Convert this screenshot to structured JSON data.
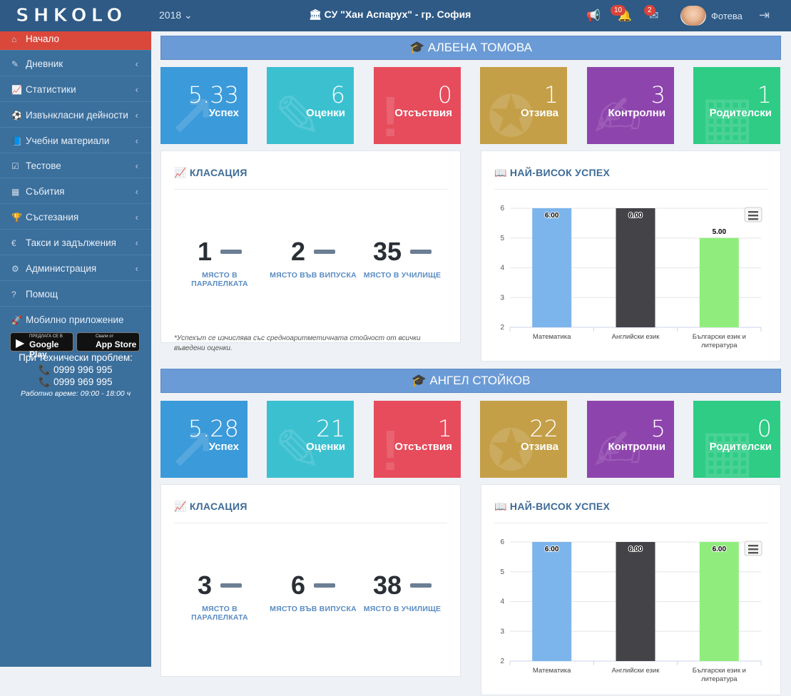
{
  "topbar": {
    "logo": "SHKOLO",
    "year": "2018 ⌄",
    "school": "🏛 СУ \"Хан Аспарух\" - гр. София",
    "notifications_count": "10",
    "messages_count": "2",
    "user_name": "Фотева"
  },
  "sidebar": {
    "items": [
      {
        "icon": "home-icon",
        "label": "Начало"
      },
      {
        "icon": "edit-icon",
        "label": "Дневник"
      },
      {
        "icon": "line-chart-icon",
        "label": "Статистики"
      },
      {
        "icon": "soccer-ball-icon",
        "label": "Извънкласни дейности"
      },
      {
        "icon": "book-icon",
        "label": "Учебни материали"
      },
      {
        "icon": "checkbox-icon",
        "label": "Тестове"
      },
      {
        "icon": "calendar-icon",
        "label": "Събития"
      },
      {
        "icon": "trophy-icon",
        "label": "Състезания"
      },
      {
        "icon": "euro-icon",
        "label": "Такси и задължения"
      },
      {
        "icon": "cogs-icon",
        "label": "Администрация"
      },
      {
        "icon": "question-icon",
        "label": "Помощ"
      },
      {
        "icon": "rocket-icon",
        "label": "Мобилно приложение"
      }
    ],
    "google_play_small": "ПРЕДЛАГА СЕ В",
    "google_play": "Google Play",
    "app_store_small": "Свали от",
    "app_store": "App Store",
    "help_title": "При технически проблем:",
    "phone1": "📞 0999 996 995",
    "phone2": "📞 0999 969 995",
    "hours": "Работно време: 09:00 - 18:00 ч"
  },
  "students": [
    {
      "name": "🎓 АЛБЕНА ТОМОВА",
      "tiles": [
        {
          "value": "5.33",
          "label": "Успех",
          "color": "#3b9ad9"
        },
        {
          "value": "6",
          "label": "Оценки",
          "color": "#3bc0d0"
        },
        {
          "value": "0",
          "label": "Отсъствия",
          "color": "#e64c5c"
        },
        {
          "value": "1",
          "label": "Отзива",
          "color": "#c49f47"
        },
        {
          "value": "3",
          "label": "Контролни",
          "color": "#8e44ad"
        },
        {
          "value": "1",
          "label": "Родителски",
          "color": "#2ecc85"
        }
      ],
      "ranking": {
        "title": "КЛАСАЦИЯ",
        "items": [
          {
            "value": "1",
            "label": "МЯСТО В ПАРАЛЕЛКАТА"
          },
          {
            "value": "2",
            "label": "МЯСТО ВЪВ ВИПУСКА"
          },
          {
            "value": "35",
            "label": "МЯСТО В УЧИЛИЩЕ"
          }
        ],
        "note": "*Успехът се изчислява със средноаритметичната стойност от всички въведени оценки."
      },
      "best_title": "НАЙ-ВИСОК УСПЕХ"
    },
    {
      "name": "🎓 АНГЕЛ СТОЙКОВ",
      "tiles": [
        {
          "value": "5.28",
          "label": "Успех",
          "color": "#3b9ad9"
        },
        {
          "value": "21",
          "label": "Оценки",
          "color": "#3bc0d0"
        },
        {
          "value": "1",
          "label": "Отсъствия",
          "color": "#e64c5c"
        },
        {
          "value": "22",
          "label": "Отзива",
          "color": "#c49f47"
        },
        {
          "value": "5",
          "label": "Контролни",
          "color": "#8e44ad"
        },
        {
          "value": "0",
          "label": "Родителски",
          "color": "#2ecc85"
        }
      ],
      "ranking": {
        "title": "КЛАСАЦИЯ",
        "items": [
          {
            "value": "3",
            "label": "МЯСТО В ПАРАЛЕЛКАТА"
          },
          {
            "value": "6",
            "label": "МЯСТО ВЪВ ВИПУСКА"
          },
          {
            "value": "38",
            "label": "МЯСТО В УЧИЛИЩЕ"
          }
        ]
      },
      "best_title": "НАЙ-ВИСОК УСПЕХ"
    }
  ],
  "chart_data": [
    {
      "type": "bar",
      "categories": [
        "Математика",
        "Английски език",
        "Български език и литература"
      ],
      "values": [
        6.0,
        6.0,
        5.0
      ],
      "data_labels": [
        "6.00",
        "6.00",
        "5.00"
      ],
      "colors": [
        "#7cb5ec",
        "#434348",
        "#90ed7d"
      ],
      "ylim": [
        2,
        6
      ],
      "yticks": [
        "6",
        "5",
        "4",
        "3",
        "2"
      ],
      "grid": true
    },
    {
      "type": "bar",
      "categories": [
        "Математика",
        "Английски език",
        "Български език и литература"
      ],
      "values": [
        6.0,
        6.0,
        6.0
      ],
      "data_labels": [
        "6.00",
        "6.00",
        "6.00"
      ],
      "colors": [
        "#7cb5ec",
        "#434348",
        "#90ed7d"
      ],
      "ylim": [
        2,
        6
      ],
      "yticks": [
        "6",
        "5",
        "4",
        "3",
        "2"
      ],
      "grid": true
    }
  ]
}
